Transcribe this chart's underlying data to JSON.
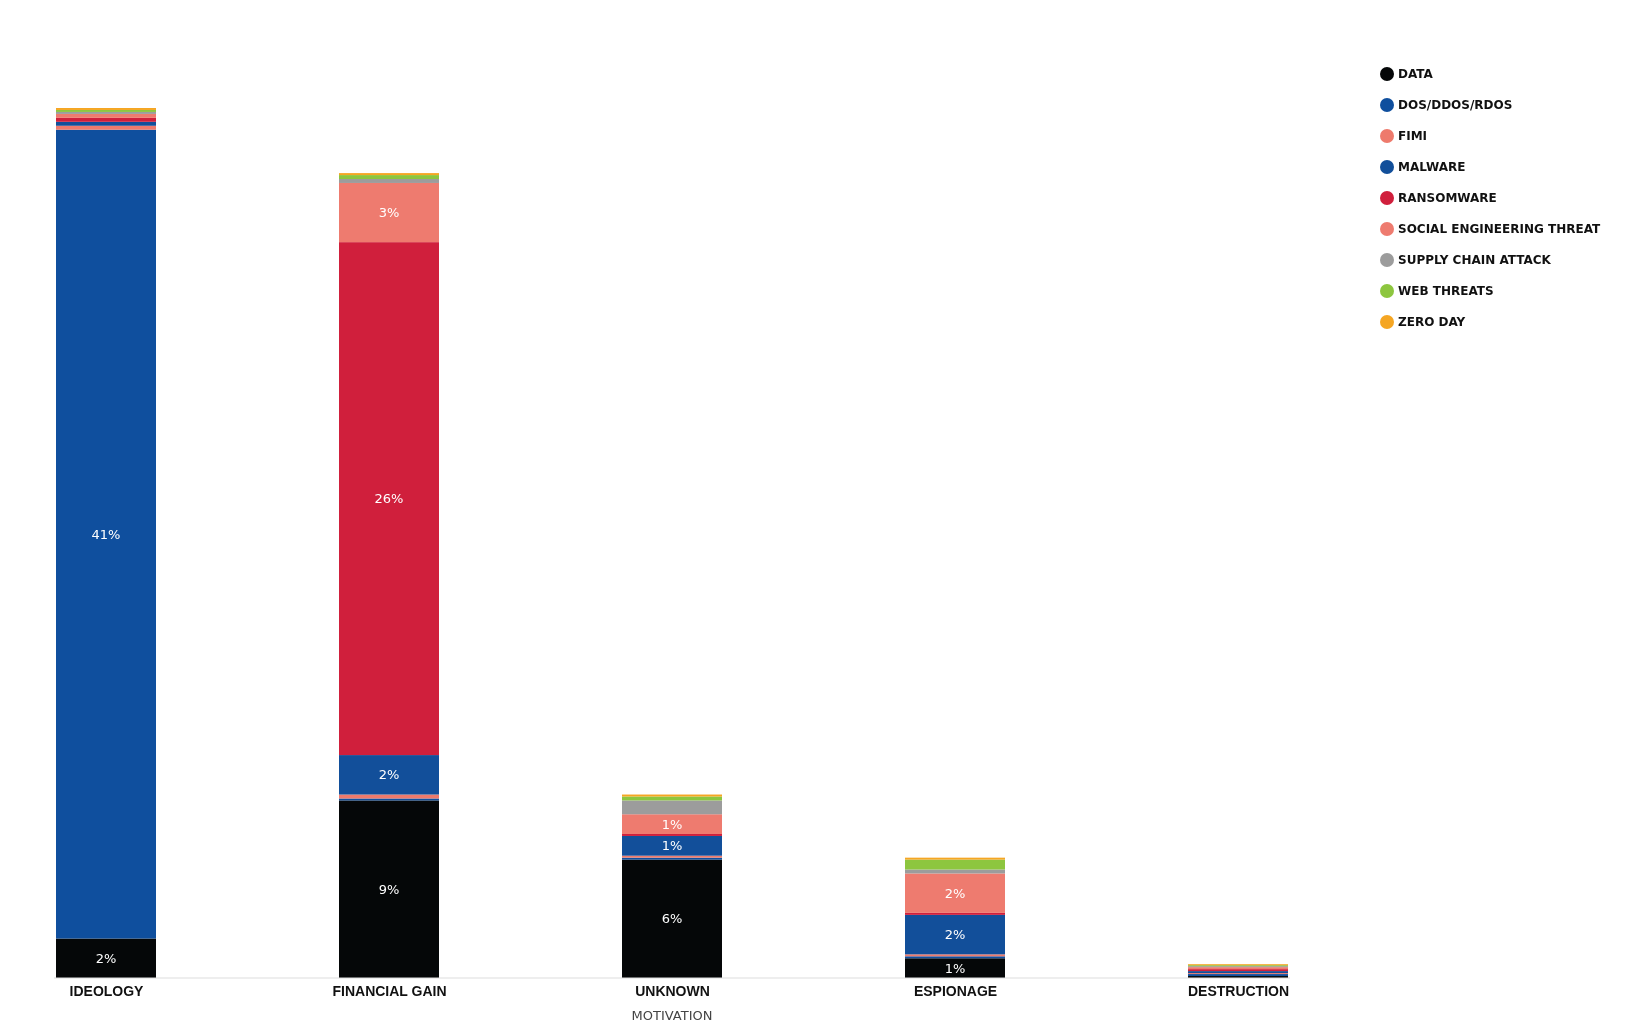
{
  "chart_data": {
    "type": "bar",
    "stacked": true,
    "xlabel": "MOTIVATION",
    "legend": "top right",
    "categories": [
      "IDEOLOGY",
      "FINANCIAL GAIN",
      "UNKNOWN",
      "ESPIONAGE",
      "DESTRUCTION"
    ],
    "series": [
      {
        "name": "DATA",
        "color": "#050708",
        "values": [
          2,
          9,
          6,
          1,
          0.1
        ],
        "value_labels": [
          "2%",
          "9%",
          "6%",
          "1%",
          null
        ]
      },
      {
        "name": "DOS/DDOS/RDOS",
        "color": "#0f4f9e",
        "values": [
          41,
          0.1,
          0.1,
          0.1,
          0.1
        ],
        "value_labels": [
          "41%",
          null,
          null,
          null,
          null
        ]
      },
      {
        "name": "FIMI",
        "color": "#ee7a6c",
        "values": [
          0.2,
          0.2,
          0.1,
          0.1,
          0.05
        ],
        "value_labels": [
          null,
          null,
          null,
          null,
          null
        ]
      },
      {
        "name": "MALWARE",
        "color": "#124f9a",
        "values": [
          0.2,
          2,
          1,
          2,
          0.1
        ],
        "value_labels": [
          null,
          "2%",
          "1%",
          "2%",
          null
        ]
      },
      {
        "name": "RANSOMWARE",
        "color": "#d01f3c",
        "values": [
          0.2,
          26,
          0.1,
          0.1,
          0.1
        ],
        "value_labels": [
          null,
          "26%",
          null,
          null,
          null
        ]
      },
      {
        "name": "SOCIAL ENGINEERING THREAT",
        "color": "#ee7b6f",
        "values": [
          0.2,
          3,
          1,
          2,
          0.1
        ],
        "value_labels": [
          null,
          "3%",
          "1%",
          "2%",
          null
        ]
      },
      {
        "name": "SUPPLY CHAIN ATTACK",
        "color": "#9c9c9c",
        "values": [
          0.1,
          0.2,
          0.7,
          0.2,
          0.05
        ],
        "value_labels": [
          null,
          null,
          null,
          null,
          null
        ]
      },
      {
        "name": "WEB THREATS",
        "color": "#8dc63f",
        "values": [
          0.1,
          0.2,
          0.2,
          0.5,
          0.05
        ],
        "value_labels": [
          null,
          null,
          null,
          null,
          null
        ]
      },
      {
        "name": "ZERO DAY",
        "color": "#f5a623",
        "values": [
          0.1,
          0.1,
          0.1,
          0.1,
          0.05
        ],
        "value_labels": [
          null,
          null,
          null,
          null,
          null
        ]
      }
    ]
  }
}
